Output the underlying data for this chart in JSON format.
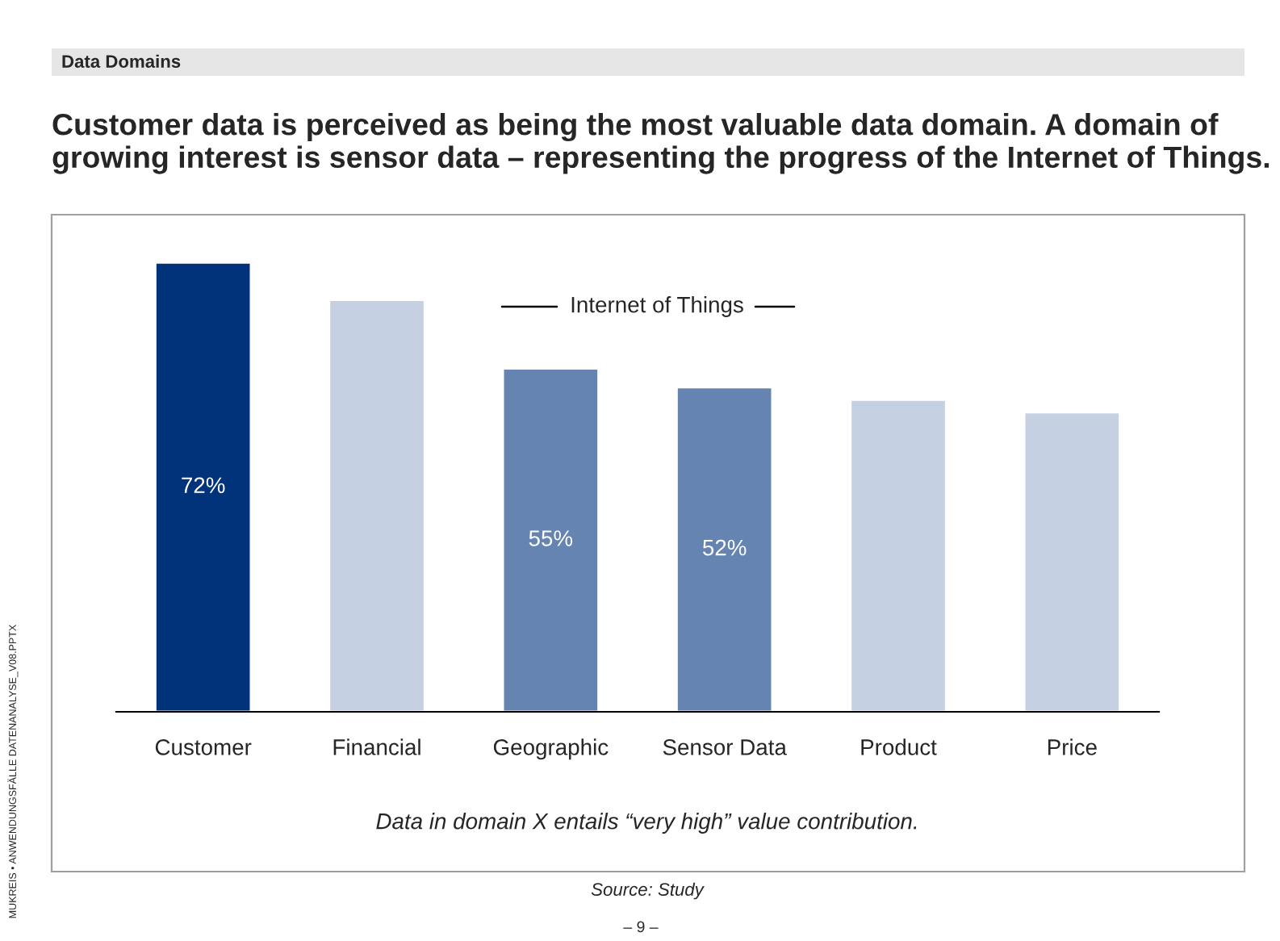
{
  "chart_data": {
    "type": "bar",
    "title": "Customer data is perceived as being the most valuable data domain. A domain of growing interest is sensor data – representing the progress of the Internet of Things.",
    "categories": [
      "Customer",
      "Financial",
      "Geographic",
      "Sensor Data",
      "Product",
      "Price"
    ],
    "values": [
      72,
      66,
      55,
      52,
      50,
      48
    ],
    "colors": [
      "#00337a",
      "#c5d0e2",
      "#6584b2",
      "#6584b2",
      "#c5d0e2",
      "#c5d0e2"
    ],
    "value_labels": [
      "72%",
      null,
      "55%",
      "52%",
      null,
      null
    ],
    "annotations": [
      "Data Domains",
      "Internet of Things",
      "Data in domain X entails “very high” value contribution.",
      "Source: Study",
      "– 9 –",
      "MUKREIS • ANWENDUNGSFÄLLE DATENANALYSE_V08.PPTX"
    ],
    "grid": false,
    "legend": false
  }
}
